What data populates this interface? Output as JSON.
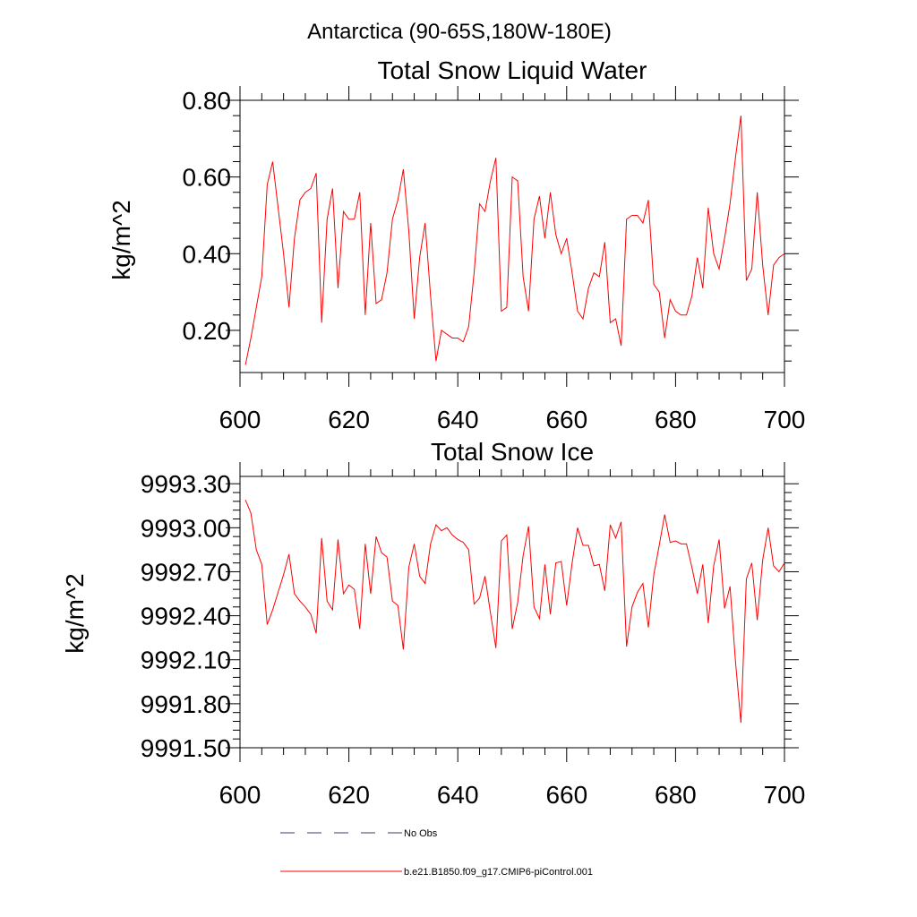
{
  "figure": {
    "title": "Antarctica (90-65S,180W-180E)",
    "background": "#ffffff",
    "line_color": "#ff0000"
  },
  "chart_data": [
    {
      "type": "line",
      "title": "Total Snow Liquid Water",
      "xlabel": "",
      "ylabel": "kg/m^2",
      "xlim": [
        600,
        700
      ],
      "ylim": [
        0.09,
        0.8
      ],
      "xticks": [
        600,
        620,
        640,
        660,
        680,
        700
      ],
      "xtick_labels": [
        "600",
        "620",
        "640",
        "660",
        "680",
        "700"
      ],
      "yticks": [
        0.2,
        0.4,
        0.6,
        0.8
      ],
      "ytick_labels": [
        "0.20",
        "0.40",
        "0.60",
        "0.80"
      ],
      "series": [
        {
          "name": "b.e21.B1850.f09_g17.CMIP6-piControl.001",
          "color": "#ff0000",
          "x": [
            601,
            602,
            603,
            604,
            605,
            606,
            607,
            608,
            609,
            610,
            611,
            612,
            613,
            614,
            615,
            616,
            617,
            618,
            619,
            620,
            621,
            622,
            623,
            624,
            625,
            626,
            627,
            628,
            629,
            630,
            631,
            632,
            633,
            634,
            635,
            636,
            637,
            638,
            639,
            640,
            641,
            642,
            643,
            644,
            645,
            646,
            647,
            648,
            649,
            650,
            651,
            652,
            653,
            654,
            655,
            656,
            657,
            658,
            659,
            660,
            661,
            662,
            663,
            664,
            665,
            666,
            667,
            668,
            669,
            670,
            671,
            672,
            673,
            674,
            675,
            676,
            677,
            678,
            679,
            680,
            681,
            682,
            683,
            684,
            685,
            686,
            687,
            688,
            689,
            690,
            691,
            692,
            693,
            694,
            695,
            696,
            697,
            698,
            699,
            700
          ],
          "values": [
            0.11,
            0.18,
            0.26,
            0.34,
            0.58,
            0.64,
            0.52,
            0.4,
            0.26,
            0.44,
            0.54,
            0.56,
            0.57,
            0.61,
            0.22,
            0.49,
            0.57,
            0.31,
            0.51,
            0.49,
            0.49,
            0.56,
            0.24,
            0.48,
            0.27,
            0.28,
            0.35,
            0.49,
            0.54,
            0.62,
            0.46,
            0.23,
            0.39,
            0.48,
            0.29,
            0.12,
            0.2,
            0.19,
            0.18,
            0.18,
            0.17,
            0.21,
            0.35,
            0.53,
            0.51,
            0.59,
            0.65,
            0.25,
            0.26,
            0.6,
            0.59,
            0.34,
            0.25,
            0.49,
            0.55,
            0.44,
            0.56,
            0.45,
            0.4,
            0.44,
            0.35,
            0.25,
            0.23,
            0.31,
            0.35,
            0.34,
            0.43,
            0.22,
            0.23,
            0.16,
            0.49,
            0.5,
            0.5,
            0.48,
            0.54,
            0.32,
            0.3,
            0.18,
            0.28,
            0.25,
            0.24,
            0.24,
            0.29,
            0.39,
            0.31,
            0.52,
            0.4,
            0.36,
            0.44,
            0.53,
            0.65,
            0.76,
            0.33,
            0.36,
            0.56,
            0.37,
            0.24,
            0.37,
            0.39,
            0.4
          ]
        }
      ]
    },
    {
      "type": "line",
      "title": "Total Snow Ice",
      "xlabel": "",
      "ylabel": "kg/m^2",
      "xlim": [
        600,
        700
      ],
      "ylim": [
        9991.5,
        9993.35
      ],
      "xticks": [
        600,
        620,
        640,
        660,
        680,
        700
      ],
      "xtick_labels": [
        "600",
        "620",
        "640",
        "660",
        "680",
        "700"
      ],
      "yticks": [
        9991.5,
        9991.8,
        9992.1,
        9992.4,
        9992.7,
        9993.0,
        9993.3
      ],
      "ytick_labels": [
        "9991.50",
        "9991.80",
        "9992.10",
        "9992.40",
        "9992.70",
        "9993.00",
        "9993.30"
      ],
      "series": [
        {
          "name": "b.e21.B1850.f09_g17.CMIP6-piControl.001",
          "color": "#ff0000",
          "x": [
            601,
            602,
            603,
            604,
            605,
            606,
            607,
            608,
            609,
            610,
            611,
            612,
            613,
            614,
            615,
            616,
            617,
            618,
            619,
            620,
            621,
            622,
            623,
            624,
            625,
            626,
            627,
            628,
            629,
            630,
            631,
            632,
            633,
            634,
            635,
            636,
            637,
            638,
            639,
            640,
            641,
            642,
            643,
            644,
            645,
            646,
            647,
            648,
            649,
            650,
            651,
            652,
            653,
            654,
            655,
            656,
            657,
            658,
            659,
            660,
            661,
            662,
            663,
            664,
            665,
            666,
            667,
            668,
            669,
            670,
            671,
            672,
            673,
            674,
            675,
            676,
            677,
            678,
            679,
            680,
            681,
            682,
            683,
            684,
            685,
            686,
            687,
            688,
            689,
            690,
            691,
            692,
            693,
            694,
            695,
            696,
            697,
            698,
            699,
            700
          ],
          "values": [
            9993.19,
            9993.1,
            9992.85,
            9992.75,
            9992.34,
            9992.44,
            9992.56,
            9992.68,
            9992.82,
            9992.55,
            9992.5,
            9992.46,
            9992.41,
            9992.28,
            9992.93,
            9992.5,
            9992.44,
            9992.92,
            9992.55,
            9992.61,
            9992.58,
            9992.31,
            9992.89,
            9992.55,
            9992.94,
            9992.83,
            9992.8,
            9992.5,
            9992.47,
            9992.17,
            9992.73,
            9992.89,
            9992.67,
            9992.62,
            9992.89,
            9993.02,
            9992.98,
            9993.0,
            9992.95,
            9992.92,
            9992.9,
            9992.85,
            9992.48,
            9992.52,
            9992.67,
            9992.42,
            9992.18,
            9992.91,
            9992.95,
            9992.31,
            9992.49,
            9992.81,
            9993.01,
            9992.46,
            9992.38,
            9992.75,
            9992.41,
            9992.76,
            9992.77,
            9992.47,
            9992.76,
            9993.0,
            9992.88,
            9992.88,
            9992.74,
            9992.75,
            9992.57,
            9993.02,
            9992.93,
            9993.04,
            9992.19,
            9992.46,
            9992.56,
            9992.62,
            9992.32,
            9992.68,
            9992.88,
            9993.09,
            9992.9,
            9992.91,
            9992.89,
            9992.89,
            9992.73,
            9992.55,
            9992.75,
            9992.35,
            9992.74,
            9992.92,
            9992.45,
            9992.6,
            9992.09,
            9991.67,
            9992.65,
            9992.76,
            9992.37,
            9992.78,
            9993.0,
            9992.74,
            9992.7,
            9992.76
          ]
        }
      ]
    }
  ],
  "legend": [
    {
      "label": "No Obs",
      "style": "dashed",
      "color": "#3b3b6b"
    },
    {
      "label": "b.e21.B1850.f09_g17.CMIP6-piControl.001",
      "style": "solid",
      "color": "#ff0000"
    }
  ]
}
